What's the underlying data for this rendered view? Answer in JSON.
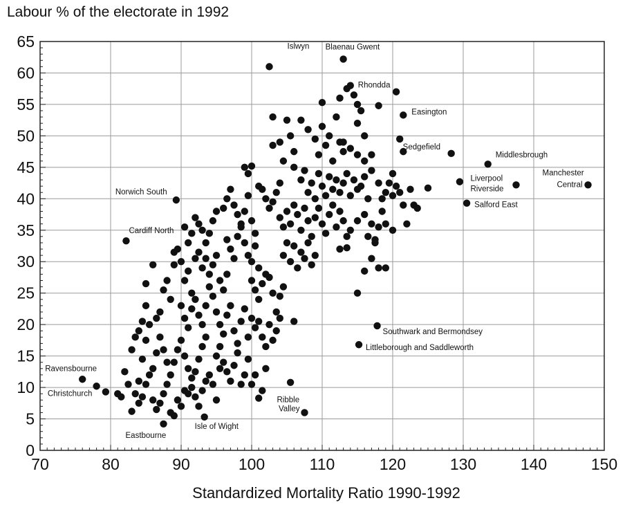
{
  "chart_data": {
    "type": "scatter",
    "title": "",
    "ylabel": "Labour % of the electorate in 1992",
    "xlabel": "Standardized Mortality Ratio 1990-1992",
    "xlim": [
      70,
      150
    ],
    "ylim": [
      0,
      65
    ],
    "x_ticks": [
      70,
      80,
      90,
      100,
      110,
      120,
      130,
      140,
      150
    ],
    "y_ticks": [
      0,
      5,
      10,
      15,
      20,
      25,
      30,
      35,
      40,
      45,
      50,
      55,
      60,
      65
    ],
    "grid": true,
    "labeled_points": [
      {
        "label": "Islwyn",
        "x": 102.5,
        "y": 61
      },
      {
        "label": "Blaenau Gwent",
        "x": 113,
        "y": 62.2
      },
      {
        "label": "Rhondda",
        "x": 114,
        "y": 58
      },
      {
        "label": "Easington",
        "x": 121.5,
        "y": 53.3
      },
      {
        "label": "Sedgefield",
        "x": 128.3,
        "y": 47.2
      },
      {
        "label": "Middlesbrough",
        "x": 133.5,
        "y": 45.5
      },
      {
        "label": "Manchester Central",
        "x": 147.7,
        "y": 42.2
      },
      {
        "label": "Liverpool Riverside",
        "x": 137.5,
        "y": 42.2
      },
      {
        "label": "Salford East",
        "x": 130.5,
        "y": 39.3
      },
      {
        "label": "Norwich South",
        "x": 89.3,
        "y": 39.8
      },
      {
        "label": "Cardiff North",
        "x": 82.2,
        "y": 33.3
      },
      {
        "label": "Southwark and Bermondsey",
        "x": 117.8,
        "y": 19.8
      },
      {
        "label": "Littleborough and Saddleworth",
        "x": 115.2,
        "y": 16.8
      },
      {
        "label": "Ravensbourne",
        "x": 76,
        "y": 11.3
      },
      {
        "label": "Christchurch",
        "x": 79.3,
        "y": 9.3
      },
      {
        "label": "Ribble Valley",
        "x": 107.5,
        "y": 6
      },
      {
        "label": "Eastbourne",
        "x": 87.5,
        "y": 4.2
      },
      {
        "label": "Isle of Wight",
        "x": 93.3,
        "y": 5.3
      }
    ],
    "points": [
      [
        78,
        10.2
      ],
      [
        81,
        9
      ],
      [
        81.5,
        8.5
      ],
      [
        82,
        12.5
      ],
      [
        82.5,
        10.5
      ],
      [
        83,
        6.2
      ],
      [
        83.5,
        9
      ],
      [
        84,
        11
      ],
      [
        84,
        7.5
      ],
      [
        84.5,
        8.5
      ],
      [
        85,
        10.5
      ],
      [
        85.5,
        12
      ],
      [
        83,
        16
      ],
      [
        83.5,
        18
      ],
      [
        84,
        19
      ],
      [
        84.5,
        14.5
      ],
      [
        85,
        17.5
      ],
      [
        85.5,
        20
      ],
      [
        86,
        13
      ],
      [
        86.5,
        15.5
      ],
      [
        84.5,
        20.5
      ],
      [
        85,
        23
      ],
      [
        85,
        26.5
      ],
      [
        86,
        29.5
      ],
      [
        86.5,
        21
      ],
      [
        87,
        22
      ],
      [
        87,
        18
      ],
      [
        87.5,
        16
      ],
      [
        88,
        14
      ],
      [
        88.5,
        12
      ],
      [
        86,
        8
      ],
      [
        86.5,
        6.5
      ],
      [
        87,
        7.5
      ],
      [
        87.5,
        9
      ],
      [
        88,
        10.5
      ],
      [
        88.5,
        6
      ],
      [
        89,
        5.5
      ],
      [
        89.5,
        8
      ],
      [
        90,
        7
      ],
      [
        90.5,
        9.5
      ],
      [
        87.5,
        25.5
      ],
      [
        88,
        27
      ],
      [
        88.5,
        24
      ],
      [
        89,
        31.5
      ],
      [
        89.5,
        32
      ],
      [
        89,
        29.5
      ],
      [
        90,
        30
      ],
      [
        90.5,
        27
      ],
      [
        91,
        28.5
      ],
      [
        91.5,
        25
      ],
      [
        90,
        23
      ],
      [
        90.5,
        21
      ],
      [
        91,
        19.5
      ],
      [
        91.5,
        22.5
      ],
      [
        92,
        24
      ],
      [
        92.5,
        21.5
      ],
      [
        93,
        20
      ],
      [
        93.5,
        23
      ],
      [
        94,
        26
      ],
      [
        94.5,
        24.5
      ],
      [
        89,
        14
      ],
      [
        89.5,
        16
      ],
      [
        90,
        17.5
      ],
      [
        90.5,
        15
      ],
      [
        91,
        13
      ],
      [
        91.5,
        11.5
      ],
      [
        92,
        12.5
      ],
      [
        92.5,
        14.5
      ],
      [
        93,
        16.5
      ],
      [
        93.5,
        18
      ],
      [
        91,
        9
      ],
      [
        91.5,
        10
      ],
      [
        92,
        8.5
      ],
      [
        92.5,
        7
      ],
      [
        93,
        9.5
      ],
      [
        93.5,
        11
      ],
      [
        94,
        12
      ],
      [
        94.5,
        10.5
      ],
      [
        95,
        8
      ],
      [
        95.5,
        13
      ],
      [
        90.5,
        35.5
      ],
      [
        91,
        33
      ],
      [
        91.5,
        34.5
      ],
      [
        92,
        37
      ],
      [
        92.5,
        36
      ],
      [
        93,
        35
      ],
      [
        93.5,
        33
      ],
      [
        94,
        34.5
      ],
      [
        94.5,
        36.5
      ],
      [
        95,
        38
      ],
      [
        92,
        30.5
      ],
      [
        92.5,
        31.5
      ],
      [
        93,
        29
      ],
      [
        93.5,
        30.5
      ],
      [
        94,
        28
      ],
      [
        94.5,
        29.5
      ],
      [
        95,
        31
      ],
      [
        95.5,
        27
      ],
      [
        96,
        25.5
      ],
      [
        96.5,
        28
      ],
      [
        95,
        22
      ],
      [
        95.5,
        20
      ],
      [
        96,
        18.5
      ],
      [
        96.5,
        21.5
      ],
      [
        97,
        23
      ],
      [
        97.5,
        19
      ],
      [
        98,
        17
      ],
      [
        98.5,
        20.5
      ],
      [
        99,
        22.5
      ],
      [
        99.5,
        18
      ],
      [
        95,
        15
      ],
      [
        95.5,
        16.5
      ],
      [
        96,
        14
      ],
      [
        96.5,
        12.5
      ],
      [
        97,
        11
      ],
      [
        97.5,
        13.5
      ],
      [
        98,
        15.5
      ],
      [
        98.5,
        10.5
      ],
      [
        99,
        12
      ],
      [
        99.5,
        14.5
      ],
      [
        96,
        38.5
      ],
      [
        96.5,
        40
      ],
      [
        97,
        41.5
      ],
      [
        97.5,
        39
      ],
      [
        98,
        37.5
      ],
      [
        98.5,
        36
      ],
      [
        99,
        38
      ],
      [
        99.5,
        40.5
      ],
      [
        100,
        36.5
      ],
      [
        100.5,
        34.5
      ],
      [
        96.5,
        33.5
      ],
      [
        97,
        32
      ],
      [
        97.5,
        30.5
      ],
      [
        98,
        34
      ],
      [
        98.5,
        35.5
      ],
      [
        99,
        33
      ],
      [
        99.5,
        31
      ],
      [
        100,
        30
      ],
      [
        100.5,
        32.5
      ],
      [
        101,
        29
      ],
      [
        99,
        45
      ],
      [
        99.5,
        44
      ],
      [
        100,
        45.2
      ],
      [
        101,
        42
      ],
      [
        101.5,
        41.5
      ],
      [
        102,
        40
      ],
      [
        102.5,
        38.5
      ],
      [
        103,
        39.5
      ],
      [
        103.5,
        41
      ],
      [
        104,
        42.5
      ],
      [
        100,
        27
      ],
      [
        100.5,
        25.5
      ],
      [
        101,
        24
      ],
      [
        101.5,
        26.5
      ],
      [
        102,
        28
      ],
      [
        102.5,
        27.5
      ],
      [
        103,
        25
      ],
      [
        103.5,
        22
      ],
      [
        104,
        24.5
      ],
      [
        104.5,
        26
      ],
      [
        100,
        21
      ],
      [
        100.5,
        19.5
      ],
      [
        101,
        20.5
      ],
      [
        101.5,
        18
      ],
      [
        102,
        16.5
      ],
      [
        102.5,
        20
      ],
      [
        103,
        17.5
      ],
      [
        103.5,
        19
      ],
      [
        100.5,
        12
      ],
      [
        101.5,
        9.5
      ],
      [
        101,
        8.3
      ],
      [
        105.5,
        10.8
      ],
      [
        106,
        20.5
      ],
      [
        104,
        21
      ],
      [
        102,
        13
      ],
      [
        100,
        10.5
      ],
      [
        103,
        53
      ],
      [
        104,
        49
      ],
      [
        104.5,
        46
      ],
      [
        105,
        52.5
      ],
      [
        105.5,
        50
      ],
      [
        106,
        47.5
      ],
      [
        107,
        52.5
      ],
      [
        108,
        51
      ],
      [
        103,
        48.5
      ],
      [
        106,
        45
      ],
      [
        104,
        37
      ],
      [
        104.5,
        35.5
      ],
      [
        105,
        38
      ],
      [
        105.5,
        36
      ],
      [
        106,
        39
      ],
      [
        106.5,
        37.5
      ],
      [
        107,
        35
      ],
      [
        107.5,
        38.5
      ],
      [
        108,
        36.5
      ],
      [
        108.5,
        34
      ],
      [
        104.5,
        31
      ],
      [
        105,
        33
      ],
      [
        105.5,
        30
      ],
      [
        106,
        32.5
      ],
      [
        106.5,
        29
      ],
      [
        107,
        31.5
      ],
      [
        107.5,
        30.5
      ],
      [
        108,
        33
      ],
      [
        108.5,
        29.5
      ],
      [
        109,
        31
      ],
      [
        107,
        43
      ],
      [
        107.5,
        44.5
      ],
      [
        108,
        41
      ],
      [
        108.5,
        42.5
      ],
      [
        109,
        40
      ],
      [
        109.5,
        44
      ],
      [
        110,
        42
      ],
      [
        110.5,
        40.5
      ],
      [
        111,
        43.5
      ],
      [
        111.5,
        41.5
      ],
      [
        109,
        49.5
      ],
      [
        109.5,
        47
      ],
      [
        110,
        51.5
      ],
      [
        110.5,
        48.5
      ],
      [
        111,
        50
      ],
      [
        111.5,
        46
      ],
      [
        110,
        55.3
      ],
      [
        112,
        53
      ],
      [
        112.5,
        49
      ],
      [
        113,
        47.5
      ],
      [
        109,
        37
      ],
      [
        109.5,
        38.5
      ],
      [
        110,
        36
      ],
      [
        110.5,
        34.5
      ],
      [
        111,
        37.5
      ],
      [
        111.5,
        39
      ],
      [
        112,
        35.5
      ],
      [
        112.5,
        38
      ],
      [
        113,
        36.5
      ],
      [
        113.5,
        34
      ],
      [
        112,
        43
      ],
      [
        112.5,
        41
      ],
      [
        113,
        42.5
      ],
      [
        113.5,
        44
      ],
      [
        114,
        40.5
      ],
      [
        114.5,
        43
      ],
      [
        115,
        41.5
      ],
      [
        115.5,
        42
      ],
      [
        116,
        43.5
      ],
      [
        116.5,
        40
      ],
      [
        112.5,
        56
      ],
      [
        113.5,
        57.5
      ],
      [
        114.5,
        56.5
      ],
      [
        115,
        55
      ],
      [
        115.5,
        54
      ],
      [
        113,
        49
      ],
      [
        114,
        48
      ],
      [
        115,
        47
      ],
      [
        116,
        46
      ],
      [
        117,
        44.5
      ],
      [
        112.5,
        32
      ],
      [
        113.5,
        32.2
      ],
      [
        114,
        35
      ],
      [
        115,
        36.5
      ],
      [
        116,
        37.5
      ],
      [
        116.5,
        34
      ],
      [
        117,
        36
      ],
      [
        117.5,
        33
      ],
      [
        118,
        35.5
      ],
      [
        118.5,
        38
      ],
      [
        115,
        25
      ],
      [
        116,
        28.5
      ],
      [
        117,
        30.5
      ],
      [
        118,
        29
      ],
      [
        119,
        29
      ],
      [
        117.5,
        33.5
      ],
      [
        118.5,
        40
      ],
      [
        119,
        41
      ],
      [
        119.5,
        42.5
      ],
      [
        120,
        40.5
      ],
      [
        118,
        54.8
      ],
      [
        120.5,
        57
      ],
      [
        121,
        49.5
      ],
      [
        121.5,
        47.5
      ],
      [
        120,
        44
      ],
      [
        120.5,
        42
      ],
      [
        121,
        41
      ],
      [
        121.5,
        39
      ],
      [
        122,
        36
      ],
      [
        122.5,
        41.5
      ],
      [
        123,
        39
      ],
      [
        123.5,
        38.5
      ],
      [
        125,
        41.7
      ],
      [
        129.5,
        42.7
      ],
      [
        119,
        36
      ],
      [
        120,
        35
      ],
      [
        118,
        42.5
      ],
      [
        117,
        47
      ],
      [
        115,
        52
      ],
      [
        116,
        50
      ]
    ]
  }
}
